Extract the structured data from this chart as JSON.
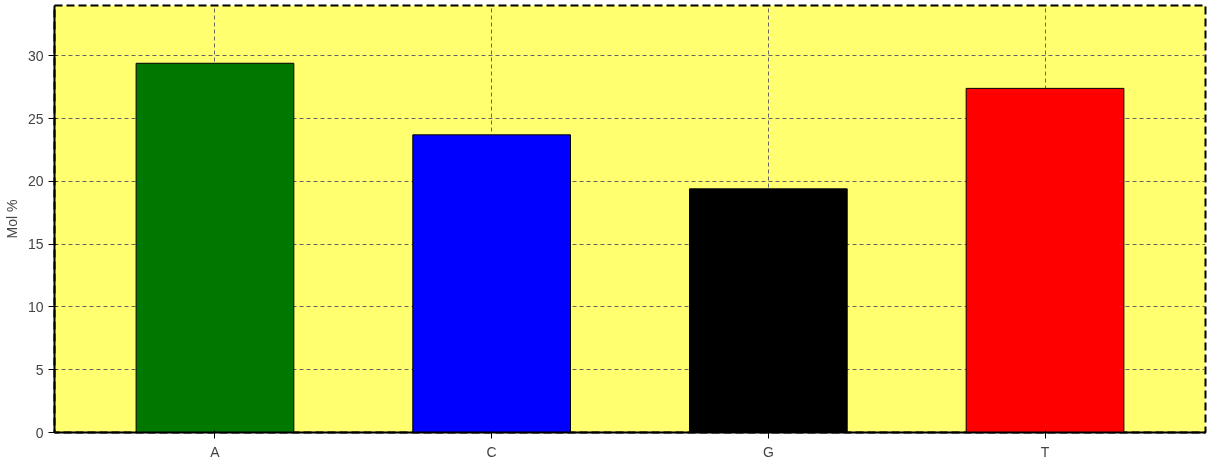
{
  "chart_data": {
    "type": "bar",
    "ylabel": "Mol %",
    "categories": [
      "A",
      "C",
      "G",
      "T"
    ],
    "values": [
      29.4,
      23.7,
      19.4,
      27.4
    ],
    "colors": [
      "#007800",
      "#0000ff",
      "#000000",
      "#ff0000"
    ],
    "ylim": [
      0,
      34
    ],
    "yticks": [
      0,
      5,
      10,
      15,
      20,
      25,
      30
    ],
    "grid": true
  }
}
